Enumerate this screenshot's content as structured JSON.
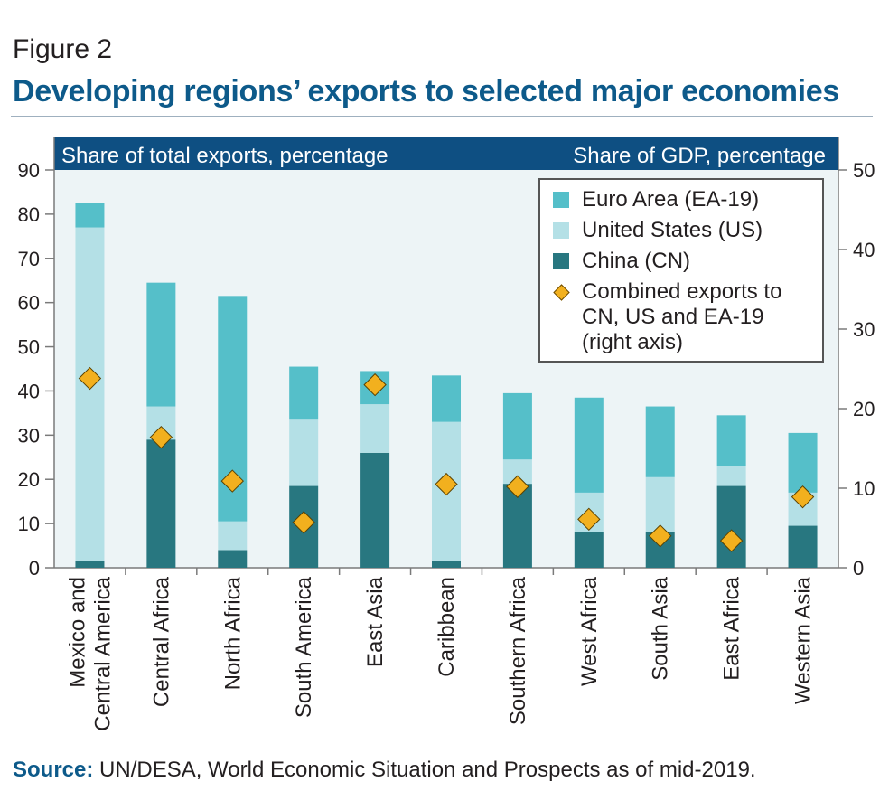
{
  "figure_label": "Figure 2",
  "title": "Developing regions’ exports to selected major economies",
  "source_label": "Source:",
  "source_text": "UN/DESA, World Economic Situation and Prospects as of mid-2019.",
  "colors": {
    "header_bar": "#0e4f82",
    "plot_bg": "#edf4f6",
    "euro": "#55bfc9",
    "us": "#b4e0e6",
    "china": "#287780",
    "diamond": "#f2b01e"
  },
  "chart_data": {
    "type": "bar",
    "stacked": true,
    "left_axis_label": "Share of total exports, percentage",
    "right_axis_label": "Share of GDP, percentage",
    "left_ylim": [
      0,
      90
    ],
    "left_ticks": [
      0,
      10,
      20,
      30,
      40,
      50,
      60,
      70,
      80,
      90
    ],
    "right_ylim": [
      0,
      50
    ],
    "right_ticks": [
      0,
      10,
      20,
      30,
      40,
      50
    ],
    "categories": [
      "Mexico and Central America",
      "Central Africa",
      "North Africa",
      "South America",
      "East Asia",
      "Caribbean",
      "Southern Africa",
      "West Africa",
      "South Asia",
      "East Africa",
      "Western Asia"
    ],
    "category_lines": [
      [
        "Mexico and",
        "Central America"
      ],
      [
        "Central Africa"
      ],
      [
        "North Africa"
      ],
      [
        "South America"
      ],
      [
        "East Asia"
      ],
      [
        "Caribbean"
      ],
      [
        "Southern Africa"
      ],
      [
        "West Africa"
      ],
      [
        "South Asia"
      ],
      [
        "East Africa"
      ],
      [
        "Western Asia"
      ]
    ],
    "series": [
      {
        "name": "China (CN)",
        "values": [
          1.5,
          29,
          4,
          18.5,
          26,
          1.5,
          19,
          8,
          8,
          18.5,
          9.5
        ]
      },
      {
        "name": "United States (US)",
        "values": [
          75.5,
          7.5,
          6.5,
          15,
          11,
          31.5,
          5.5,
          9,
          12.5,
          4.5,
          7.5
        ]
      },
      {
        "name": "Euro Area (EA-19)",
        "values": [
          5.5,
          28,
          51,
          12,
          7.5,
          10.5,
          15,
          21.5,
          16,
          11.5,
          13.5
        ]
      }
    ],
    "line_series": {
      "name": "Combined exports to CN, US and EA-19 (right axis)",
      "axis": "right",
      "values": [
        23.8,
        16.4,
        10.9,
        5.7,
        23.0,
        10.5,
        10.2,
        6.1,
        4.0,
        3.4,
        8.9
      ]
    },
    "legend": {
      "position": "top-right",
      "items": [
        {
          "label_lines": [
            "Euro Area (EA-19)"
          ],
          "kind": "euro"
        },
        {
          "label_lines": [
            "United States (US)"
          ],
          "kind": "us"
        },
        {
          "label_lines": [
            "China (CN)"
          ],
          "kind": "china"
        },
        {
          "label_lines": [
            "Combined exports to",
            "CN, US and EA-19",
            "(right axis)"
          ],
          "kind": "diamond"
        }
      ]
    }
  }
}
